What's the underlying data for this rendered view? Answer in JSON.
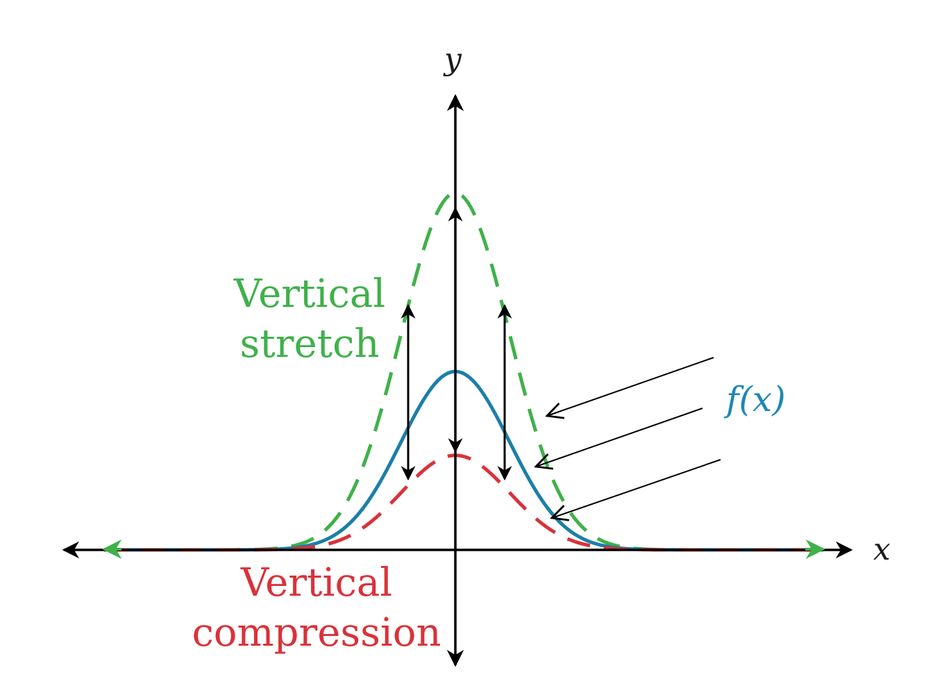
{
  "axes": {
    "x_label": "x",
    "y_label": "y"
  },
  "labels": {
    "stretch_line1": "Vertical",
    "stretch_line2": "stretch",
    "compression_line1": "Vertical",
    "compression_line2": "compression",
    "fx_label": "f(x)"
  },
  "colors": {
    "axis": "#000000",
    "stretch": "#3fb14a",
    "original": "#1b7fa8",
    "compression": "#d9323a",
    "fx_label": "#1f86b8"
  },
  "curves": {
    "original": {
      "style": "solid",
      "relative_peak": 1.0
    },
    "stretch": {
      "style": "dashed",
      "relative_peak": 2.0
    },
    "compression": {
      "style": "dashed",
      "relative_peak": 0.53
    }
  }
}
